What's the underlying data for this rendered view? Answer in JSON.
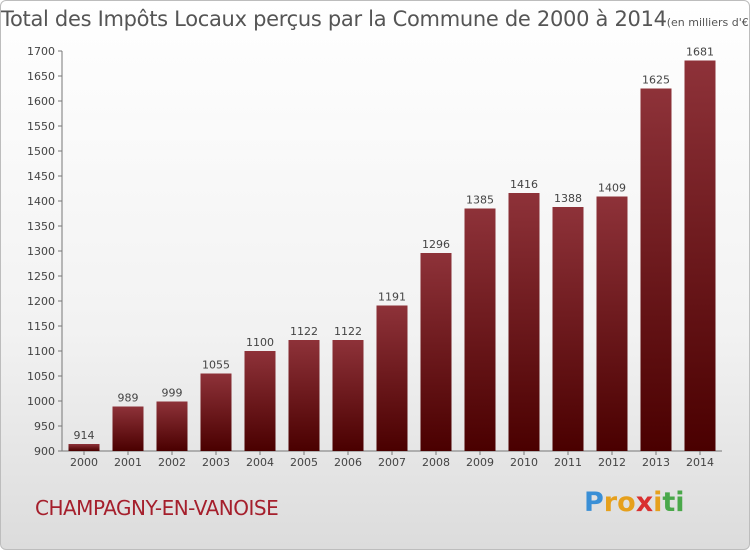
{
  "title": "Total des Impôts Locaux perçus par la Commune de 2000 à 2014",
  "subtitle": "(en milliers d'€)",
  "commune": "CHAMPAGNY-EN-VANOISE",
  "logo": {
    "letters": [
      "P",
      "r",
      "o",
      "x",
      "i",
      "t",
      "i"
    ],
    "colors": [
      "#3a8fd6",
      "#e6a01c",
      "#e6a01c",
      "#d93030",
      "#e6a01c",
      "#4aa84a",
      "#4aa84a"
    ]
  },
  "colors": {
    "bar_light": "#8e3239",
    "bar_dark": "#4a0000",
    "text": "#555555",
    "commune": "#a51f2c"
  },
  "chart_data": {
    "type": "bar",
    "title": "Total des Impôts Locaux perçus par la Commune de 2000 à 2014",
    "xlabel": "",
    "ylabel": "en milliers d'€",
    "categories": [
      "2000",
      "2001",
      "2002",
      "2003",
      "2004",
      "2005",
      "2006",
      "2007",
      "2008",
      "2009",
      "2010",
      "2011",
      "2012",
      "2013",
      "2014"
    ],
    "values": [
      914,
      989,
      999,
      1055,
      1100,
      1122,
      1122,
      1191,
      1296,
      1385,
      1416,
      1388,
      1409,
      1625,
      1681
    ],
    "ylim": [
      900,
      1700
    ],
    "yticks": [
      900,
      950,
      1000,
      1050,
      1100,
      1150,
      1200,
      1250,
      1300,
      1350,
      1400,
      1450,
      1500,
      1550,
      1600,
      1650,
      1700
    ],
    "grid": false
  }
}
